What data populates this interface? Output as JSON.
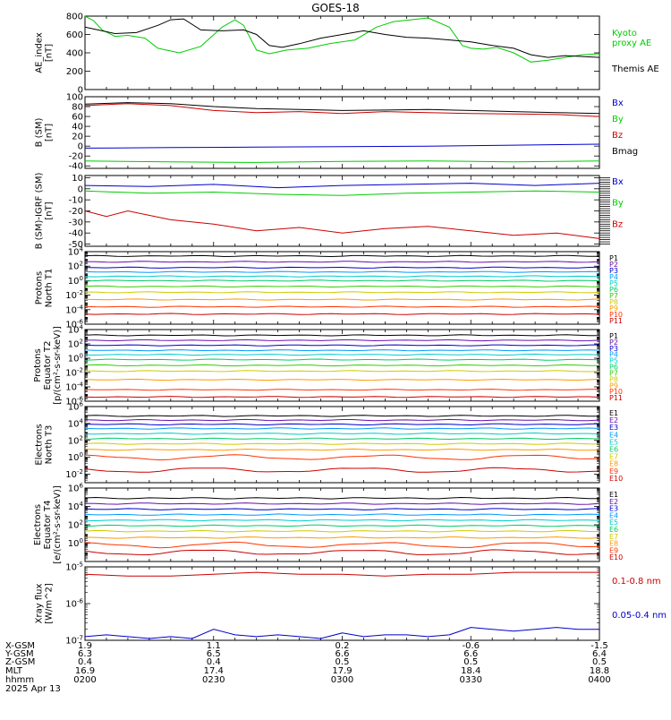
{
  "title": "GOES-18",
  "chart_data": [
    {
      "type": "line",
      "panel": "ae",
      "ylabel": [
        "AE_index",
        "[nT]"
      ],
      "ylim": [
        0,
        800
      ],
      "yticks": [
        "800",
        "600",
        "400",
        "200",
        "0"
      ],
      "legend": [
        {
          "lines": [
            "Kyoto",
            "proxy AE"
          ],
          "color": "#00cc00"
        },
        {
          "lines": [
            "Themis AE"
          ],
          "color": "#000000"
        }
      ],
      "series": [
        {
          "name": "Kyoto proxy AE",
          "color": "#00cc00",
          "x": [
            0,
            2,
            4,
            7,
            10,
            14,
            17,
            22,
            27,
            32,
            35,
            37,
            40,
            43,
            45,
            47,
            52,
            57,
            63,
            68,
            72,
            76,
            80,
            85,
            88,
            90,
            93,
            96,
            100,
            104,
            108,
            112,
            116,
            120
          ],
          "y": [
            800,
            750,
            650,
            580,
            590,
            560,
            450,
            400,
            470,
            680,
            760,
            700,
            430,
            390,
            410,
            430,
            450,
            500,
            540,
            680,
            740,
            760,
            780,
            680,
            480,
            450,
            440,
            460,
            400,
            300,
            320,
            350,
            380,
            390
          ]
        },
        {
          "name": "Themis AE",
          "color": "#000000",
          "x": [
            0,
            3,
            7,
            12,
            17,
            20,
            23,
            27,
            32,
            37,
            40,
            43,
            46,
            50,
            55,
            60,
            65,
            70,
            75,
            80,
            85,
            90,
            95,
            100,
            104,
            108,
            112,
            116,
            120
          ],
          "y": [
            680,
            650,
            610,
            620,
            700,
            760,
            770,
            650,
            640,
            650,
            600,
            480,
            460,
            500,
            560,
            600,
            640,
            600,
            570,
            560,
            540,
            520,
            480,
            450,
            380,
            350,
            370,
            360,
            350
          ]
        }
      ]
    },
    {
      "type": "line",
      "panel": "b_sm",
      "ylabel": [
        "B (SM)",
        "[nT]"
      ],
      "ylim": [
        -45,
        100
      ],
      "yticks": [
        "100",
        "80",
        "60",
        "40",
        "20",
        "0",
        "-20",
        "-40"
      ],
      "ytick_values": [
        100,
        80,
        60,
        40,
        20,
        0,
        -20,
        -40
      ],
      "legend": [
        {
          "lines": [
            "Bx"
          ],
          "color": "#0000cc"
        },
        {
          "lines": [
            "By"
          ],
          "color": "#00cc00"
        },
        {
          "lines": [
            "Bz"
          ],
          "color": "#cc0000"
        },
        {
          "lines": [
            "Bmag"
          ],
          "color": "#000000"
        }
      ],
      "series": [
        {
          "name": "Bmag",
          "color": "#000000",
          "x": [
            0,
            10,
            20,
            30,
            40,
            50,
            60,
            70,
            80,
            90,
            100,
            110,
            120
          ],
          "y": [
            85,
            88,
            86,
            80,
            76,
            74,
            72,
            73,
            74,
            72,
            70,
            68,
            66
          ]
        },
        {
          "name": "Bz",
          "color": "#cc0000",
          "x": [
            0,
            10,
            20,
            30,
            40,
            50,
            60,
            70,
            80,
            90,
            100,
            110,
            120
          ],
          "y": [
            82,
            86,
            82,
            72,
            68,
            70,
            66,
            70,
            68,
            66,
            65,
            64,
            60
          ]
        },
        {
          "name": "Bx",
          "color": "#0000cc",
          "x": [
            0,
            20,
            40,
            60,
            80,
            100,
            120
          ],
          "y": [
            -4,
            -3,
            -2,
            -1,
            0,
            2,
            4
          ]
        },
        {
          "name": "By",
          "color": "#00cc00",
          "x": [
            0,
            20,
            40,
            60,
            80,
            100,
            120
          ],
          "y": [
            -30,
            -32,
            -33,
            -31,
            -30,
            -32,
            -30
          ]
        }
      ]
    },
    {
      "type": "line",
      "panel": "b_igrf",
      "ylabel": [
        "B (SM)-IGRF (SM)",
        "[nT]"
      ],
      "ylim": [
        -52,
        12
      ],
      "yticks": [
        "10",
        "0",
        "-10",
        "-20",
        "-30",
        "-40",
        "-50"
      ],
      "ytick_values": [
        10,
        0,
        -10,
        -20,
        -30,
        -40,
        -50
      ],
      "legend": [
        {
          "lines": [
            "Bx"
          ],
          "color": "#0000cc"
        },
        {
          "lines": [
            "By"
          ],
          "color": "#00cc00"
        },
        {
          "lines": [
            "Bz"
          ],
          "color": "#cc0000"
        }
      ],
      "series": [
        {
          "name": "Bx",
          "color": "#0000cc",
          "x": [
            0,
            15,
            30,
            45,
            60,
            75,
            90,
            105,
            120
          ],
          "y": [
            3,
            2,
            4,
            1,
            3,
            4,
            5,
            3,
            5
          ]
        },
        {
          "name": "By",
          "color": "#00cc00",
          "x": [
            0,
            15,
            30,
            45,
            60,
            75,
            90,
            105,
            120
          ],
          "y": [
            -2,
            -4,
            -3,
            -5,
            -6,
            -4,
            -3,
            -2,
            -3
          ]
        },
        {
          "name": "Bz",
          "color": "#cc0000",
          "x": [
            0,
            5,
            10,
            20,
            30,
            40,
            50,
            60,
            70,
            80,
            90,
            100,
            110,
            120
          ],
          "y": [
            -20,
            -25,
            -20,
            -28,
            -32,
            -38,
            -35,
            -40,
            -36,
            -34,
            -38,
            -42,
            -40,
            -45
          ]
        }
      ]
    },
    {
      "type": "line",
      "panel": "protons_t1",
      "ylabel": [
        "Protons",
        "North T1"
      ],
      "yscale": "log",
      "ylim": [
        -6,
        4
      ],
      "yticks": [
        "10^4",
        "10^2",
        "10^0",
        "10^-2",
        "10^-4",
        "10^-6"
      ],
      "ytick_values": [
        4,
        2,
        0,
        -2,
        -4,
        -6
      ],
      "channels": [
        "P1",
        "P2",
        "P3",
        "P4",
        "P5",
        "P6",
        "P7",
        "P8",
        "P9",
        "P10",
        "P11"
      ],
      "channel_colors": [
        "#000000",
        "#6a0dad",
        "#0000cc",
        "#0099ff",
        "#00cccc",
        "#00cc66",
        "#33cc00",
        "#cccc00",
        "#ff9900",
        "#ff3300",
        "#cc0000"
      ],
      "log_levels": [
        3.4,
        2.6,
        1.8,
        1.2,
        0.6,
        0.0,
        -0.8,
        -1.6,
        -2.6,
        -3.6,
        -4.6
      ]
    },
    {
      "type": "line",
      "panel": "protons_t2",
      "ylabel": [
        "Protons",
        "Equator T2",
        "[p/(cm²-s-sr-keV)]"
      ],
      "yscale": "log",
      "ylim": [
        -6,
        4
      ],
      "yticks": [
        "10^4",
        "10^2",
        "10^0",
        "10^-2",
        "10^-4",
        "10^-6"
      ],
      "ytick_values": [
        4,
        2,
        0,
        -2,
        -4,
        -6
      ],
      "channels": [
        "P1",
        "P2",
        "P3",
        "P4",
        "P5",
        "P6",
        "P7",
        "P8",
        "P9",
        "P10",
        "P11"
      ],
      "channel_colors": [
        "#000000",
        "#6a0dad",
        "#0000cc",
        "#0099ff",
        "#00cccc",
        "#00cc66",
        "#33cc00",
        "#cccc00",
        "#ff9900",
        "#ff3300",
        "#cc0000"
      ],
      "log_levels": [
        3.2,
        2.5,
        1.8,
        1.1,
        0.5,
        -0.2,
        -1.0,
        -1.8,
        -3.0,
        -4.4,
        -5.4
      ]
    },
    {
      "type": "line",
      "panel": "electrons_t3",
      "ylabel": [
        "Electrons",
        "North T3"
      ],
      "yscale": "log",
      "ylim": [
        -3,
        6
      ],
      "yticks": [
        "10^6",
        "10^4",
        "10^2",
        "10^0",
        "10^-2"
      ],
      "ytick_values": [
        6,
        4,
        2,
        0,
        -2
      ],
      "channels": [
        "E1",
        "E2",
        "E3",
        "E4",
        "E5",
        "E6",
        "E7",
        "E8",
        "E9",
        "E10"
      ],
      "channel_colors": [
        "#000000",
        "#6a0dad",
        "#0000cc",
        "#0099ff",
        "#00cccc",
        "#00cc66",
        "#cccc00",
        "#ff9900",
        "#ff3300",
        "#cc0000"
      ],
      "log_levels": [
        4.9,
        4.4,
        3.9,
        3.4,
        2.8,
        2.2,
        1.6,
        0.9,
        0.0,
        -1.5
      ]
    },
    {
      "type": "line",
      "panel": "electrons_t4",
      "ylabel": [
        "Electrons",
        "Equator T4",
        "[e/(cm²-s-sr-keV)]"
      ],
      "yscale": "log",
      "ylim": [
        -2,
        6
      ],
      "yticks": [
        "10^6",
        "10^4",
        "10^2",
        "10^0"
      ],
      "ytick_values": [
        6,
        4,
        2,
        0
      ],
      "channels": [
        "E1",
        "E2",
        "E3",
        "E4",
        "E5",
        "E6",
        "E7",
        "E8",
        "E9",
        "E10"
      ],
      "channel_colors": [
        "#000000",
        "#6a0dad",
        "#0000cc",
        "#0099ff",
        "#00cccc",
        "#00cc66",
        "#cccc00",
        "#ff9900",
        "#ff3300",
        "#cc0000"
      ],
      "log_levels": [
        4.9,
        4.3,
        3.7,
        3.1,
        2.5,
        1.9,
        1.3,
        0.6,
        -0.2,
        -1.0
      ]
    },
    {
      "type": "line",
      "panel": "xray",
      "ylabel": [
        "Xray flux",
        "[W/m^2]"
      ],
      "yscale": "log",
      "ylim": [
        -7,
        -5
      ],
      "yticks": [
        "10^-5",
        "10^-6",
        "10^-7"
      ],
      "ytick_values": [
        -5,
        -6,
        -7
      ],
      "legend": [
        {
          "lines": [
            "0.1-0.8 nm"
          ],
          "color": "#cc0000"
        },
        {
          "lines": [
            "0.05-0.4 nm"
          ],
          "color": "#0000cc"
        }
      ],
      "series": [
        {
          "name": "0.1-0.8 nm",
          "color": "#cc0000",
          "x": [
            0,
            10,
            20,
            30,
            40,
            50,
            60,
            70,
            80,
            90,
            100,
            110,
            120
          ],
          "y": [
            -5.2,
            -5.25,
            -5.25,
            -5.2,
            -5.15,
            -5.2,
            -5.2,
            -5.25,
            -5.2,
            -5.2,
            -5.15,
            -5.15,
            -5.15
          ]
        },
        {
          "name": "0.05-0.4 nm",
          "color": "#0000cc",
          "x": [
            0,
            5,
            10,
            15,
            20,
            25,
            30,
            35,
            40,
            45,
            50,
            55,
            60,
            65,
            70,
            75,
            80,
            85,
            90,
            95,
            100,
            105,
            110,
            115,
            120
          ],
          "y": [
            -6.9,
            -6.85,
            -6.9,
            -6.95,
            -6.9,
            -6.95,
            -6.7,
            -6.85,
            -6.9,
            -6.85,
            -6.9,
            -6.95,
            -6.8,
            -6.9,
            -6.85,
            -6.85,
            -6.9,
            -6.85,
            -6.65,
            -6.7,
            -6.75,
            -6.7,
            -6.65,
            -6.7,
            -6.7
          ]
        }
      ]
    }
  ],
  "footer": {
    "row_labels": [
      "X-GSM",
      "Y-GSM",
      "Z-GSM",
      "MLT",
      "hhmm",
      "2025 Apr 13"
    ],
    "columns": [
      {
        "values": [
          "1.9",
          "6.3",
          "0.4",
          "16.9",
          "0200"
        ]
      },
      {
        "values": [
          "1.1",
          "6.5",
          "0.4",
          "17.4",
          "0230"
        ]
      },
      {
        "values": [
          "0.2",
          "6.6",
          "0.5",
          "17.9",
          "0300"
        ]
      },
      {
        "values": [
          "-0.6",
          "6.6",
          "0.5",
          "18.4",
          "0330"
        ]
      },
      {
        "values": [
          "-1.5",
          "6.4",
          "0.5",
          "18.8",
          "0400"
        ]
      }
    ]
  }
}
